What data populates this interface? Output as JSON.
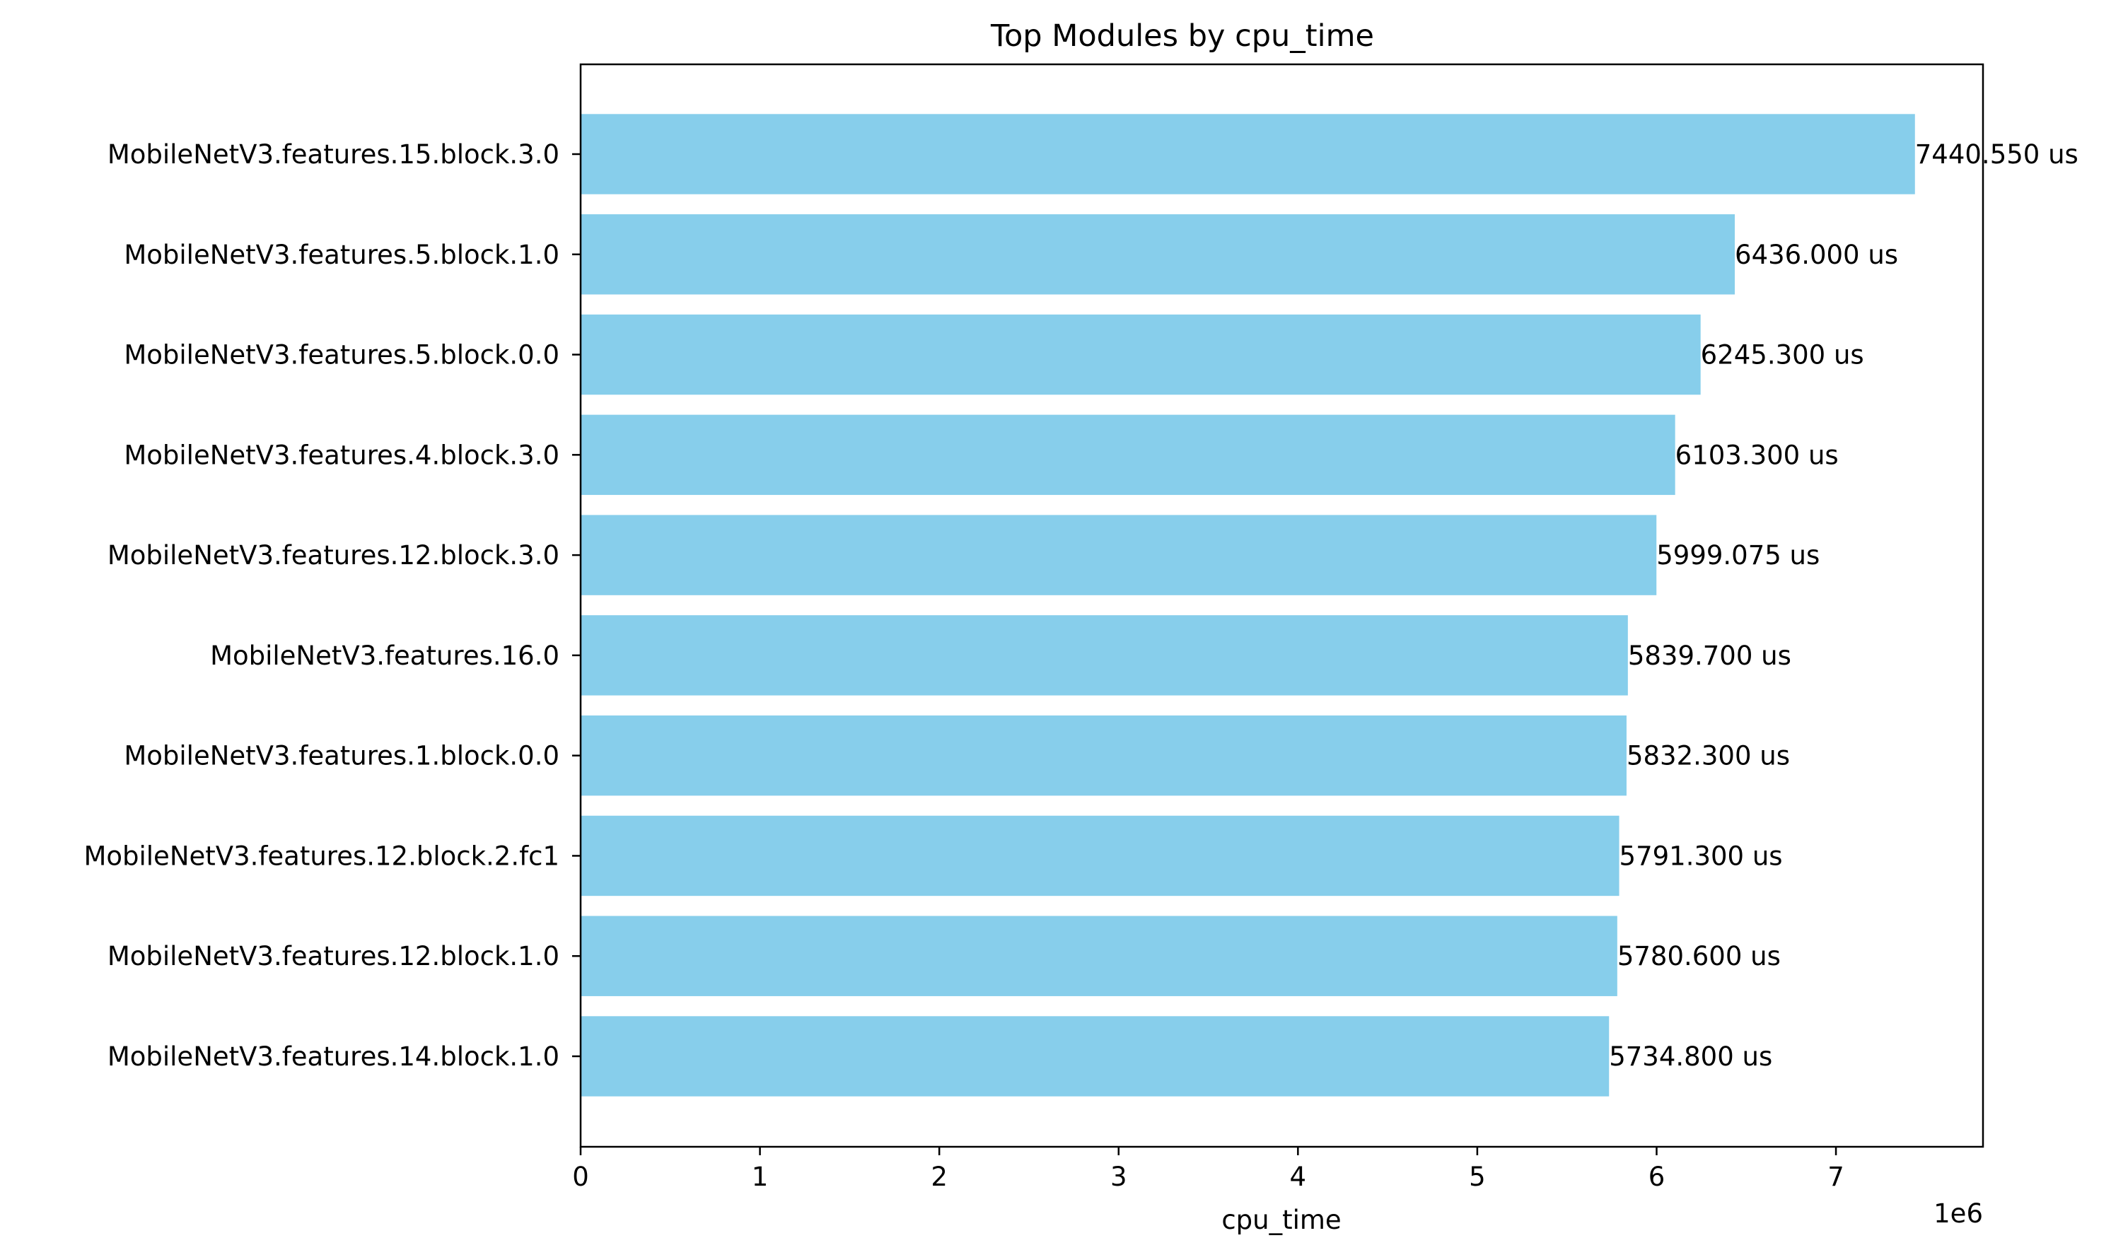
{
  "chart_data": {
    "type": "bar",
    "orientation": "horizontal",
    "title": "Top Modules by cpu_time",
    "xlabel": "cpu_time",
    "ylabel": "",
    "x_scale_label": "1e6",
    "xlim": [
      0,
      7.82
    ],
    "x_ticks": [
      "0",
      "1",
      "2",
      "3",
      "4",
      "5",
      "6",
      "7"
    ],
    "bar_color": "#87ceeb",
    "grid": false,
    "categories": [
      "MobileNetV3.features.15.block.3.0",
      "MobileNetV3.features.5.block.1.0",
      "MobileNetV3.features.5.block.0.0",
      "MobileNetV3.features.4.block.3.0",
      "MobileNetV3.features.12.block.3.0",
      "MobileNetV3.features.16.0",
      "MobileNetV3.features.1.block.0.0",
      "MobileNetV3.features.12.block.2.fc1",
      "MobileNetV3.features.12.block.1.0",
      "MobileNetV3.features.14.block.1.0"
    ],
    "values": [
      7.44055,
      6.436,
      6.2453,
      6.1033,
      5.999075,
      5.8397,
      5.8323,
      5.7913,
      5.7806,
      5.7348
    ],
    "data_labels": [
      "7440.550 us",
      "6436.000 us",
      "6245.300 us",
      "6103.300 us",
      "5999.075 us",
      "5839.700 us",
      "5832.300 us",
      "5791.300 us",
      "5780.600 us",
      "5734.800 us"
    ]
  }
}
